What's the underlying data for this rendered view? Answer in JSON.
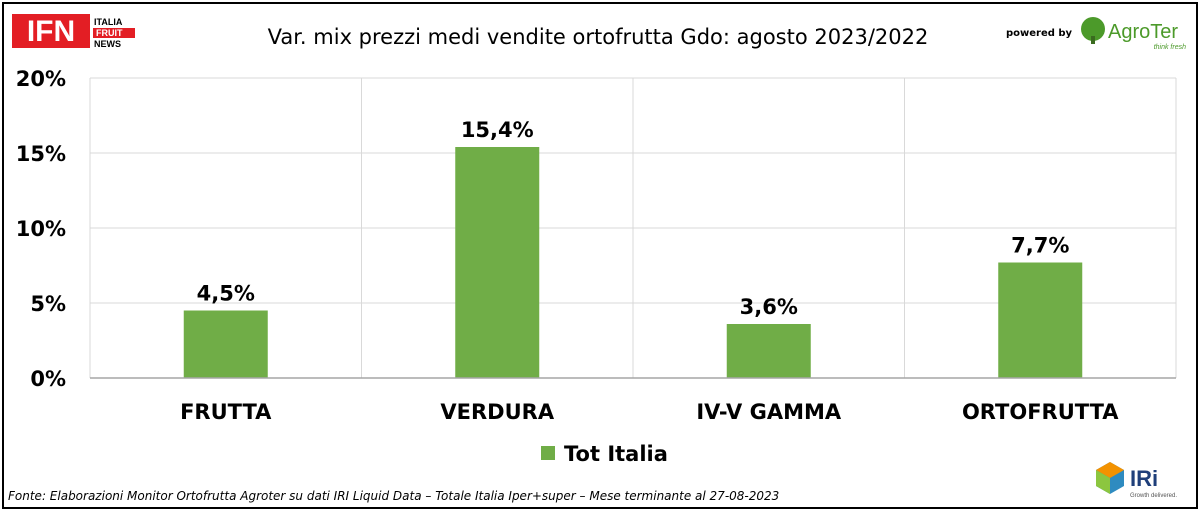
{
  "header": {
    "logo_left": {
      "mark": "IFN",
      "line1": "ITALIA",
      "line2": "FRUIT",
      "line3": "NEWS"
    },
    "powered_by": "powered by",
    "logo_right": {
      "name": "AgroTer",
      "tagline": "think fresh"
    }
  },
  "footer": {
    "source": "Fonte: Elaborazioni Monitor Ortofrutta Agroter su dati IRI Liquid Data – Totale Italia Iper+super – Mese terminante al 27-08-2023",
    "logo": {
      "name": "IRi",
      "tagline": "Growth delivered."
    }
  },
  "colors": {
    "bar": "#70ad47",
    "grid": "#d9d9d9",
    "ifn_red": "#e31e24",
    "agroter_green": "#4c9a2a"
  },
  "chart_data": {
    "type": "bar",
    "title": "Var. mix prezzi medi vendite ortofrutta Gdo: agosto 2023/2022",
    "categories": [
      "FRUTTA",
      "VERDURA",
      "IV-V GAMMA",
      "ORTOFRUTTA"
    ],
    "series": [
      {
        "name": "Tot Italia",
        "values": [
          4.5,
          15.4,
          3.6,
          7.7
        ],
        "labels": [
          "4,5%",
          "15,4%",
          "3,6%",
          "7,7%"
        ]
      }
    ],
    "ylim": [
      0,
      20
    ],
    "yticks": [
      0,
      5,
      10,
      15,
      20
    ],
    "ytick_labels": [
      "0%",
      "5%",
      "10%",
      "15%",
      "20%"
    ],
    "grid": true,
    "legend": "bottom-center"
  }
}
